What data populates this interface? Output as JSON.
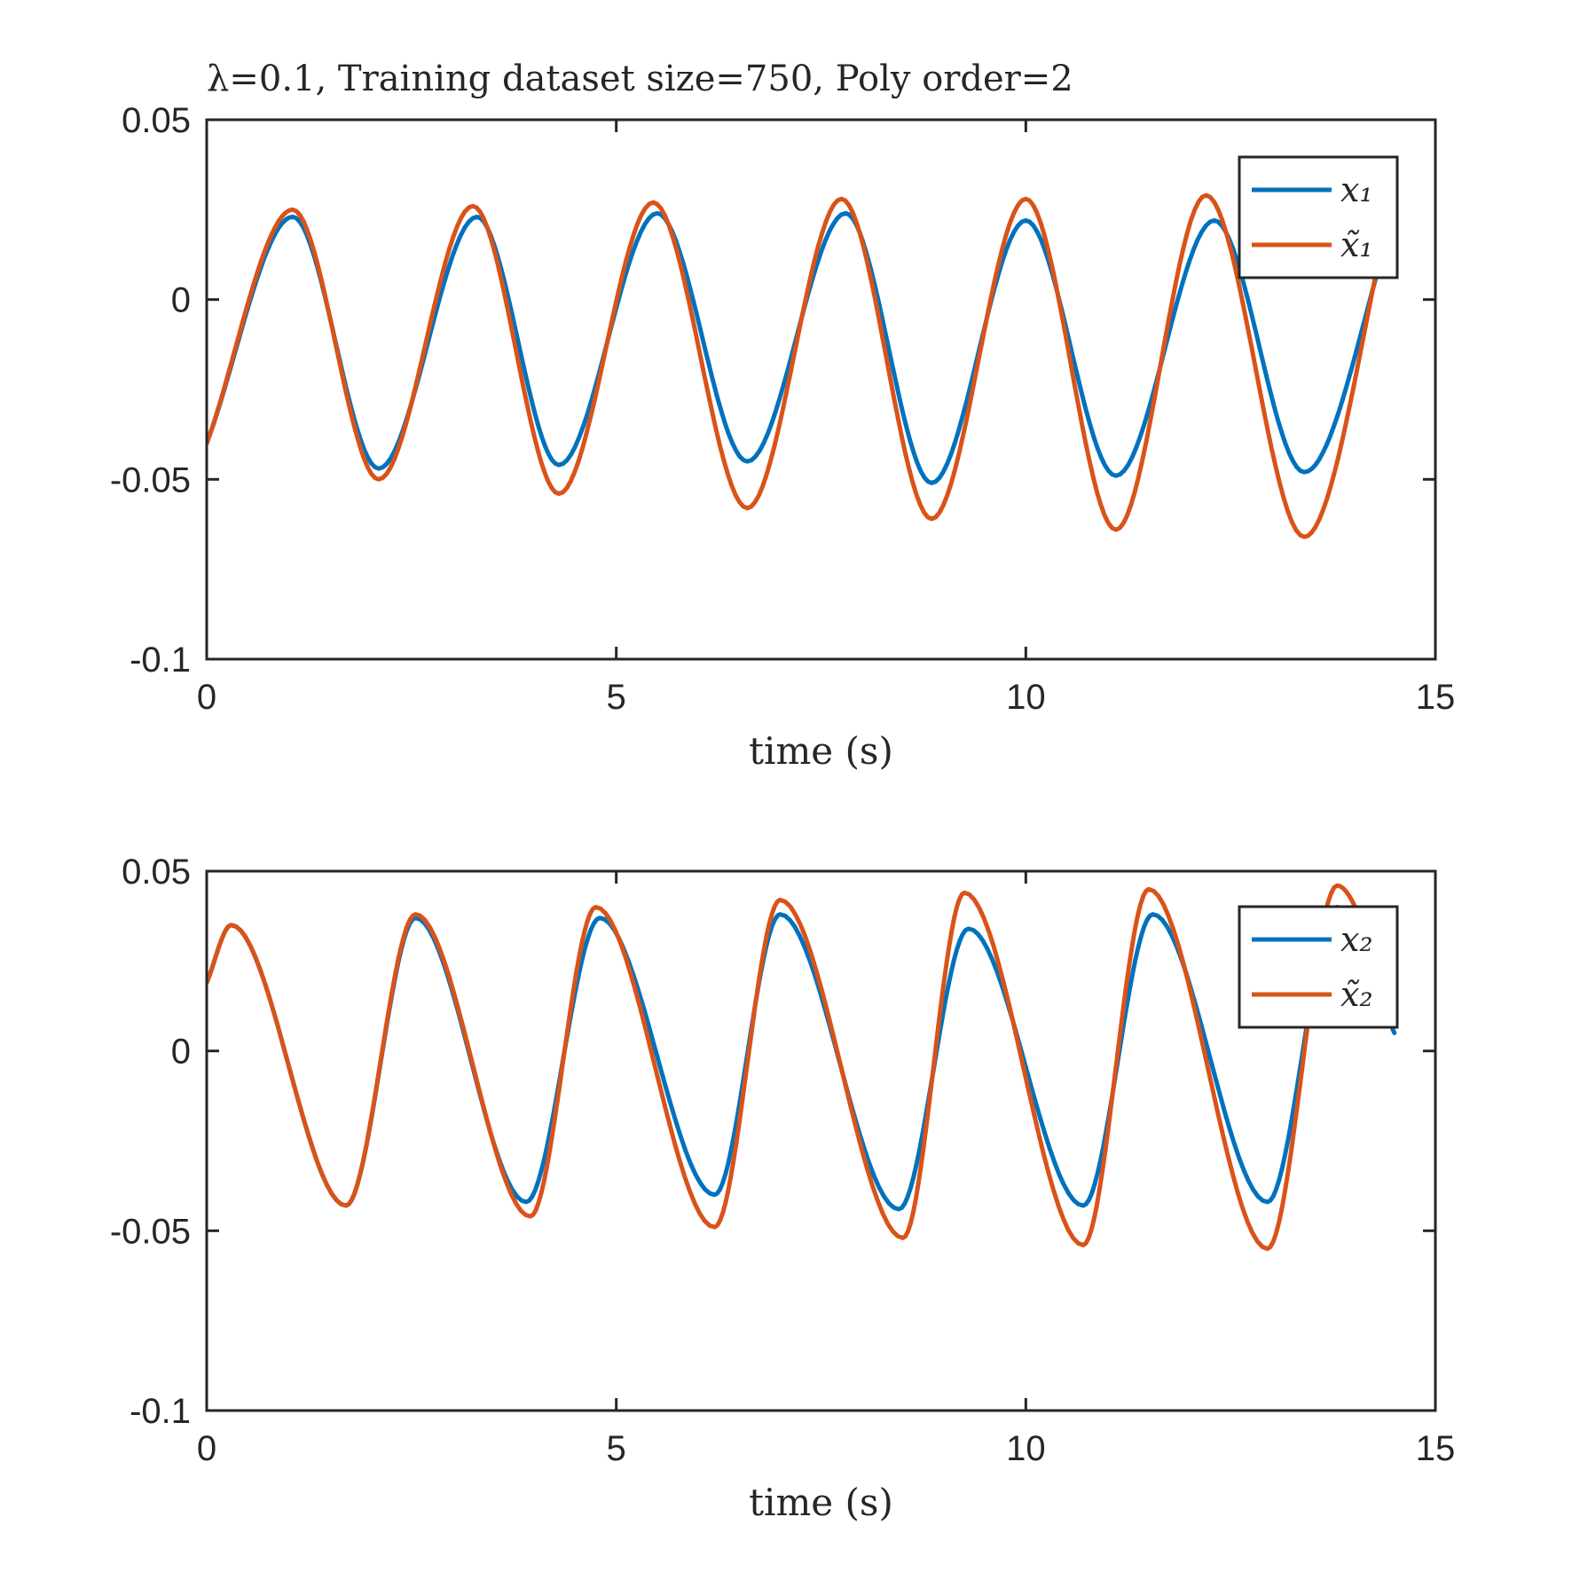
{
  "title": "λ=0.1, Training dataset size=750, Poly order=2",
  "colors": {
    "blue": "#0072BD",
    "orange": "#D95319",
    "axis": "#262626"
  },
  "chart_data": [
    {
      "type": "line",
      "title": "λ=0.1, Training dataset size=750, Poly order=2",
      "xlabel": "time (s)",
      "ylabel": "",
      "xlim": [
        0,
        15
      ],
      "ylim": [
        -0.1,
        0.05
      ],
      "xticks": [
        0,
        5,
        10,
        15
      ],
      "yticks": [
        0.05,
        0,
        -0.05,
        -0.1
      ],
      "xtick_labels": [
        "0",
        "5",
        "10",
        "15"
      ],
      "ytick_labels": [
        "0.05",
        "0",
        "-0.05",
        "-0.1"
      ],
      "grid": false,
      "legend": "top-right",
      "series": [
        {
          "name": "x₁",
          "color": "#0072BD",
          "x": [
            0,
            1.05,
            2.1,
            3.3,
            4.3,
            5.5,
            6.6,
            7.8,
            8.85,
            10.0,
            11.1,
            12.3,
            13.4,
            14.5
          ],
          "y": [
            -0.04,
            0.023,
            -0.047,
            0.023,
            -0.046,
            0.024,
            -0.045,
            0.024,
            -0.051,
            0.022,
            -0.049,
            0.022,
            -0.048,
            0.023
          ]
        },
        {
          "name": "x̃₁",
          "color": "#D95319",
          "x": [
            0,
            1.05,
            2.1,
            3.25,
            4.3,
            5.45,
            6.6,
            7.75,
            8.85,
            10.0,
            11.1,
            12.2,
            13.4,
            14.5
          ],
          "y": [
            -0.04,
            0.025,
            -0.05,
            0.026,
            -0.054,
            0.027,
            -0.058,
            0.028,
            -0.061,
            0.028,
            -0.064,
            0.029,
            -0.066,
            0.03
          ]
        }
      ]
    },
    {
      "type": "line",
      "title": "",
      "xlabel": "time (s)",
      "ylabel": "",
      "xlim": [
        0,
        15
      ],
      "ylim": [
        -0.1,
        0.05
      ],
      "xticks": [
        0,
        5,
        10,
        15
      ],
      "yticks": [
        0.05,
        0,
        -0.05,
        -0.1
      ],
      "xtick_labels": [
        "0",
        "5",
        "10",
        "15"
      ],
      "ytick_labels": [
        "0.05",
        "0",
        "-0.05",
        "-0.1"
      ],
      "grid": false,
      "legend": "top-right",
      "series": [
        {
          "name": "x₂",
          "color": "#0072BD",
          "x": [
            0,
            0.3,
            1.7,
            2.55,
            3.9,
            4.8,
            6.2,
            7.0,
            8.45,
            9.3,
            10.7,
            11.55,
            12.95,
            13.8,
            14.5
          ],
          "y": [
            0.019,
            0.035,
            -0.043,
            0.037,
            -0.042,
            0.037,
            -0.04,
            0.038,
            -0.044,
            0.034,
            -0.043,
            0.038,
            -0.042,
            0.04,
            0.005
          ]
        },
        {
          "name": "x̃₂",
          "color": "#D95319",
          "x": [
            0,
            0.3,
            1.7,
            2.55,
            3.95,
            4.75,
            6.2,
            7.0,
            8.5,
            9.25,
            10.7,
            11.5,
            12.95,
            13.8,
            14.5
          ],
          "y": [
            0.019,
            0.035,
            -0.043,
            0.038,
            -0.046,
            0.04,
            -0.049,
            0.042,
            -0.052,
            0.044,
            -0.054,
            0.045,
            -0.055,
            0.046,
            0.01
          ]
        }
      ]
    }
  ]
}
